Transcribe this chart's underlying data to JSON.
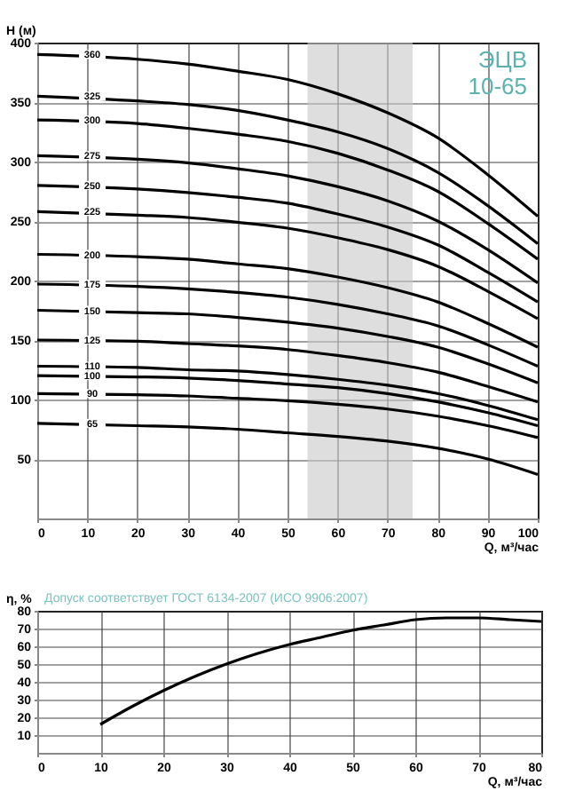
{
  "chart_data": [
    {
      "type": "line",
      "xlabel": "Q, м³/час",
      "ylabel": "H (м)",
      "xlim": [
        0,
        100
      ],
      "ylim": [
        0,
        400
      ],
      "xticks": [
        0,
        10,
        20,
        30,
        40,
        50,
        60,
        70,
        80,
        90,
        100
      ],
      "yticks": [
        50,
        100,
        150,
        200,
        250,
        300,
        350,
        400
      ],
      "grid": true,
      "annotations": [
        "ЭЦВ 10-65"
      ],
      "bands": [
        {
          "axis": "x",
          "from": 54,
          "to": 75,
          "color": "#c8c8c8"
        }
      ],
      "x": [
        0,
        20,
        30,
        40,
        50,
        60,
        70,
        80,
        90,
        100
      ],
      "series": [
        {
          "name": "360",
          "color": "#000000",
          "values": [
            390,
            386,
            382,
            376,
            369,
            357,
            341,
            320,
            289,
            254
          ]
        },
        {
          "name": "325",
          "color": "#000000",
          "values": [
            355,
            351,
            348,
            343,
            335,
            325,
            311,
            291,
            263,
            231
          ]
        },
        {
          "name": "300",
          "color": "#000000",
          "values": [
            335,
            332,
            328,
            323,
            317,
            307,
            293,
            275,
            248,
            218
          ]
        },
        {
          "name": "275",
          "color": "#000000",
          "values": [
            305,
            302,
            299,
            294,
            288,
            279,
            267,
            250,
            226,
            198
          ]
        },
        {
          "name": "250",
          "color": "#000000",
          "values": [
            280,
            277,
            274,
            270,
            265,
            256,
            245,
            230,
            207,
            182
          ]
        },
        {
          "name": "225",
          "color": "#000000",
          "values": [
            258,
            255,
            253,
            249,
            244,
            236,
            226,
            212,
            191,
            168
          ]
        },
        {
          "name": "200",
          "color": "#000000",
          "values": [
            222,
            220,
            218,
            214,
            210,
            203,
            194,
            182,
            164,
            144
          ]
        },
        {
          "name": "175",
          "color": "#000000",
          "values": [
            197,
            195,
            193,
            190,
            186,
            180,
            172,
            162,
            146,
            128
          ]
        },
        {
          "name": "150",
          "color": "#000000",
          "values": [
            175,
            173,
            172,
            169,
            165,
            160,
            153,
            144,
            130,
            114
          ]
        },
        {
          "name": "125",
          "color": "#000000",
          "values": [
            150,
            149,
            147,
            145,
            142,
            137,
            131,
            123,
            111,
            98
          ]
        },
        {
          "name": "110",
          "color": "#000000",
          "values": [
            128,
            127,
            125,
            124,
            121,
            117,
            112,
            105,
            95,
            83
          ]
        },
        {
          "name": "100",
          "color": "#000000",
          "values": [
            120,
            119,
            118,
            116,
            113,
            110,
            105,
            98,
            89,
            78
          ]
        },
        {
          "name": "90",
          "color": "#000000",
          "values": [
            105,
            104,
            103,
            101,
            99,
            96,
            92,
            86,
            78,
            68
          ]
        },
        {
          "name": "65",
          "color": "#000000",
          "values": [
            80,
            78,
            77,
            75,
            72,
            69,
            65,
            59,
            50,
            37
          ]
        }
      ]
    },
    {
      "type": "line",
      "xlabel": "Q, м³/час",
      "ylabel": "η, %",
      "xlim": [
        0,
        80
      ],
      "ylim": [
        0,
        80
      ],
      "xticks": [
        0,
        10,
        20,
        30,
        40,
        50,
        60,
        70,
        80
      ],
      "yticks": [
        10,
        20,
        30,
        40,
        50,
        60,
        70,
        80
      ],
      "grid": true,
      "annotations": [
        "Допуск соответствует ГОСТ 6134-2007 (ИСО 9906:2007)"
      ],
      "x": [
        10,
        15,
        20,
        25,
        30,
        35,
        40,
        45,
        50,
        55,
        60,
        65,
        70,
        75,
        80
      ],
      "series": [
        {
          "color": "#000000",
          "values": [
            16,
            26,
            35,
            43,
            50,
            56,
            61,
            65,
            69,
            72,
            75,
            76,
            76,
            75,
            74
          ]
        }
      ]
    }
  ]
}
